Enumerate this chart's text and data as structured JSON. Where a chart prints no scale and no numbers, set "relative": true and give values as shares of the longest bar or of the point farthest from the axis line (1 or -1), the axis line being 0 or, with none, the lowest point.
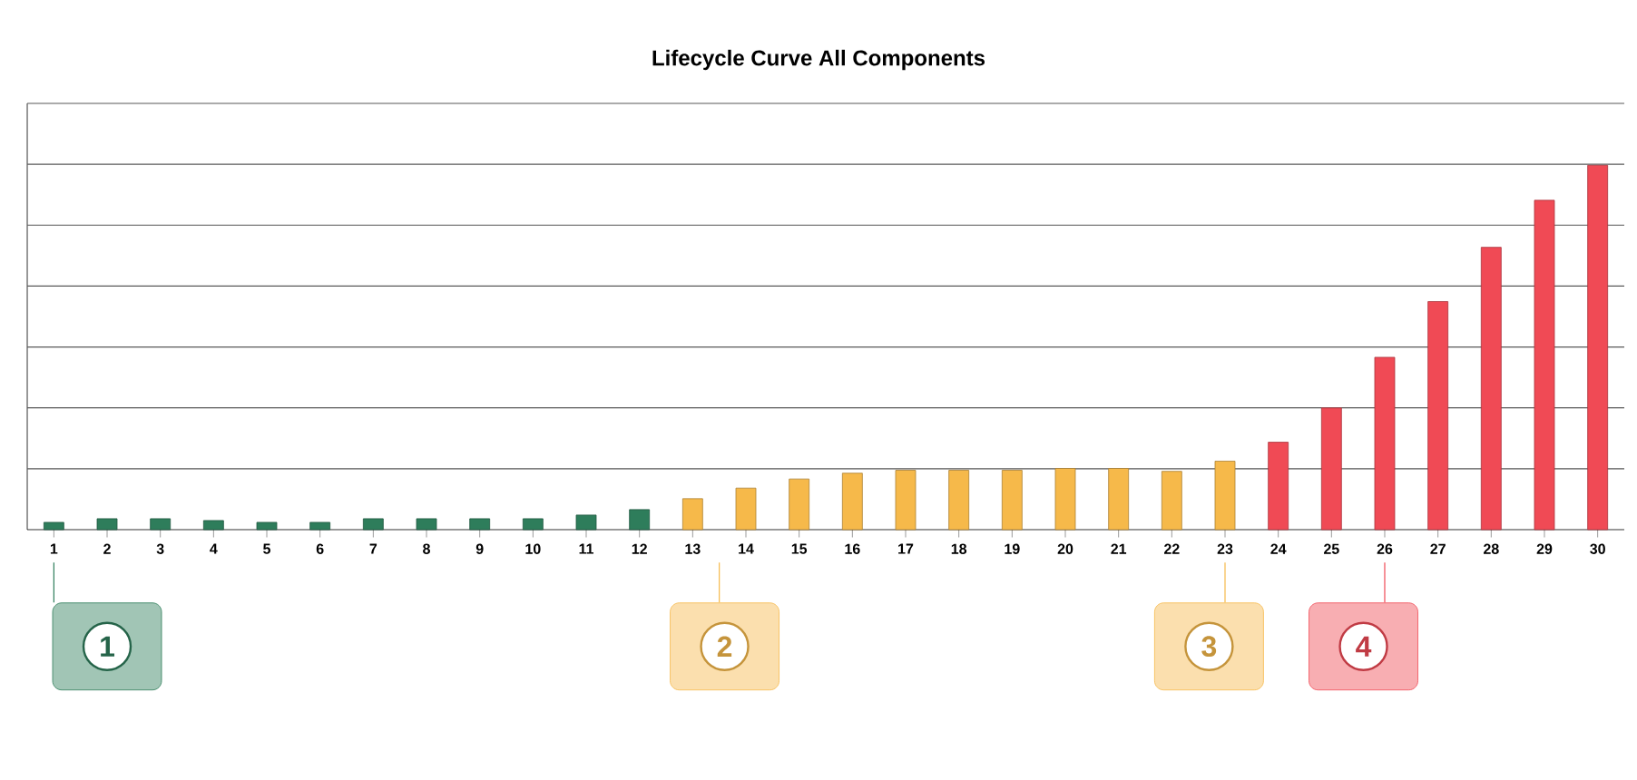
{
  "chart_data": {
    "type": "bar",
    "title": "Lifecycle Curve All Components",
    "relative": true,
    "grid": "y",
    "categories": [
      "1",
      "2",
      "3",
      "4",
      "5",
      "6",
      "7",
      "8",
      "9",
      "10",
      "11",
      "12",
      "13",
      "14",
      "15",
      "16",
      "17",
      "18",
      "19",
      "20",
      "21",
      "22",
      "23",
      "24",
      "25",
      "26",
      "27",
      "28",
      "29",
      "30"
    ],
    "values": [
      0.02,
      0.03,
      0.03,
      0.025,
      0.02,
      0.02,
      0.03,
      0.03,
      0.03,
      0.03,
      0.04,
      0.055,
      0.085,
      0.114,
      0.139,
      0.155,
      0.163,
      0.163,
      0.163,
      0.168,
      0.168,
      0.16,
      0.188,
      0.24,
      0.334,
      0.473,
      0.626,
      0.775,
      0.904,
      1
    ],
    "colors": [
      "#2e7d5b",
      "#2e7d5b",
      "#2e7d5b",
      "#2e7d5b",
      "#2e7d5b",
      "#2e7d5b",
      "#2e7d5b",
      "#2e7d5b",
      "#2e7d5b",
      "#2e7d5b",
      "#2e7d5b",
      "#2e7d5b",
      "#f6b94a",
      "#f6b94a",
      "#f6b94a",
      "#f6b94a",
      "#f6b94a",
      "#f6b94a",
      "#f6b94a",
      "#f6b94a",
      "#f6b94a",
      "#f6b94a",
      "#f6b94a",
      "#f04a55",
      "#f04a55",
      "#f04a55",
      "#f04a55",
      "#f04a55",
      "#f04a55",
      "#f04a55"
    ],
    "annotations": [
      "1",
      "2",
      "3",
      "4"
    ]
  }
}
